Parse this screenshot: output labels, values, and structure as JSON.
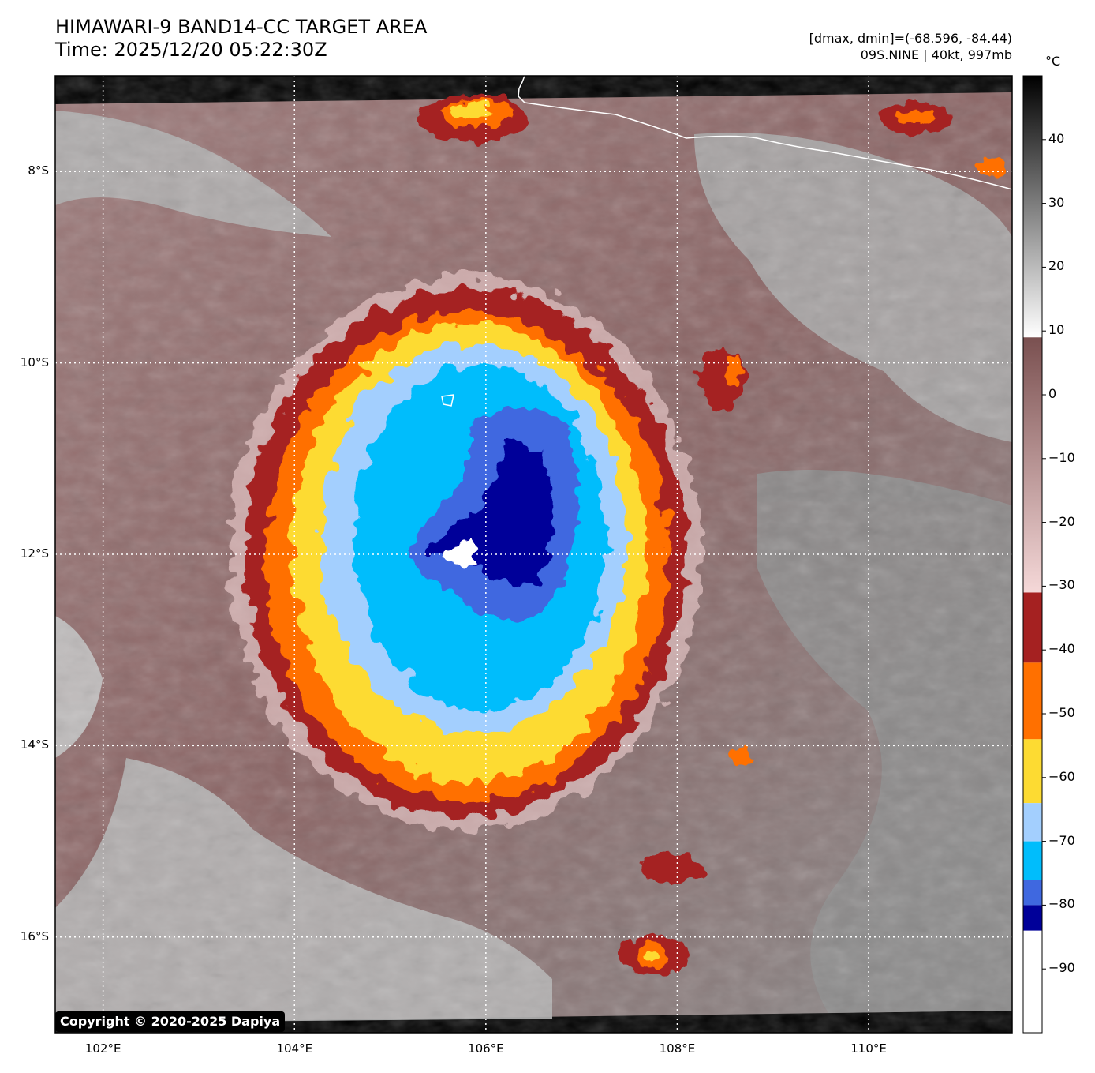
{
  "header": {
    "title_line1": "HIMAWARI-9 BAND14-CC TARGET AREA",
    "title_line2": "Time: 2025/12/20 05:22:30Z",
    "dmax_dmin": "[dmax, dmin]=(-68.596, -84.44)",
    "storm_info": "09S.NINE | 40kt, 997mb"
  },
  "map": {
    "lon_range": [
      101.5,
      111.5
    ],
    "lat_range": [
      -17.0,
      -7.0
    ],
    "lat_ticks": [
      {
        "value": -8,
        "label": "8°S"
      },
      {
        "value": -10,
        "label": "10°S"
      },
      {
        "value": -12,
        "label": "12°S"
      },
      {
        "value": -14,
        "label": "14°S"
      },
      {
        "value": -16,
        "label": "16°S"
      }
    ],
    "lon_ticks": [
      {
        "value": 102,
        "label": "102°E"
      },
      {
        "value": 104,
        "label": "104°E"
      },
      {
        "value": 106,
        "label": "106°E"
      },
      {
        "value": 108,
        "label": "108°E"
      },
      {
        "value": 110,
        "label": "110°E"
      }
    ],
    "storm_center": {
      "lon": 105.7,
      "lat": -11.8
    },
    "feature_names": [
      "cloud-top-temperature-field",
      "java-coastline",
      "gridlines"
    ]
  },
  "colorbar": {
    "unit": "°C",
    "range": [
      -100,
      50
    ],
    "ticks": [
      {
        "value": 40,
        "label": "40"
      },
      {
        "value": 30,
        "label": "30"
      },
      {
        "value": 20,
        "label": "20"
      },
      {
        "value": 10,
        "label": "10"
      },
      {
        "value": 0,
        "label": "0"
      },
      {
        "value": -10,
        "label": "−10"
      },
      {
        "value": -20,
        "label": "−20"
      },
      {
        "value": -30,
        "label": "−30"
      },
      {
        "value": -40,
        "label": "−40"
      },
      {
        "value": -50,
        "label": "−50"
      },
      {
        "value": -60,
        "label": "−60"
      },
      {
        "value": -70,
        "label": "−70"
      },
      {
        "value": -80,
        "label": "−80"
      },
      {
        "value": -90,
        "label": "−90"
      }
    ],
    "segments": [
      {
        "from": 9,
        "to": 50,
        "type": "gradient",
        "colors": [
          "#ffffff",
          "#000000"
        ]
      },
      {
        "from": -31,
        "to": 9,
        "type": "gradient",
        "colors": [
          "#f5d8d8",
          "#7a5050"
        ]
      },
      {
        "from": -42,
        "to": -31,
        "type": "solid",
        "color": "#a52121"
      },
      {
        "from": -54,
        "to": -42,
        "type": "solid",
        "color": "#ff7000"
      },
      {
        "from": -64,
        "to": -54,
        "type": "solid",
        "color": "#fddb32"
      },
      {
        "from": -70,
        "to": -64,
        "type": "solid",
        "color": "#a3cffe"
      },
      {
        "from": -76,
        "to": -70,
        "type": "solid",
        "color": "#00bdfc"
      },
      {
        "from": -80,
        "to": -76,
        "type": "solid",
        "color": "#3f68e0"
      },
      {
        "from": -84,
        "to": -80,
        "type": "solid",
        "color": "#000099"
      },
      {
        "from": -100,
        "to": -84,
        "type": "solid",
        "color": "#ffffff"
      }
    ]
  },
  "copyright": "Copyright © 2020-2025 Dapiya"
}
